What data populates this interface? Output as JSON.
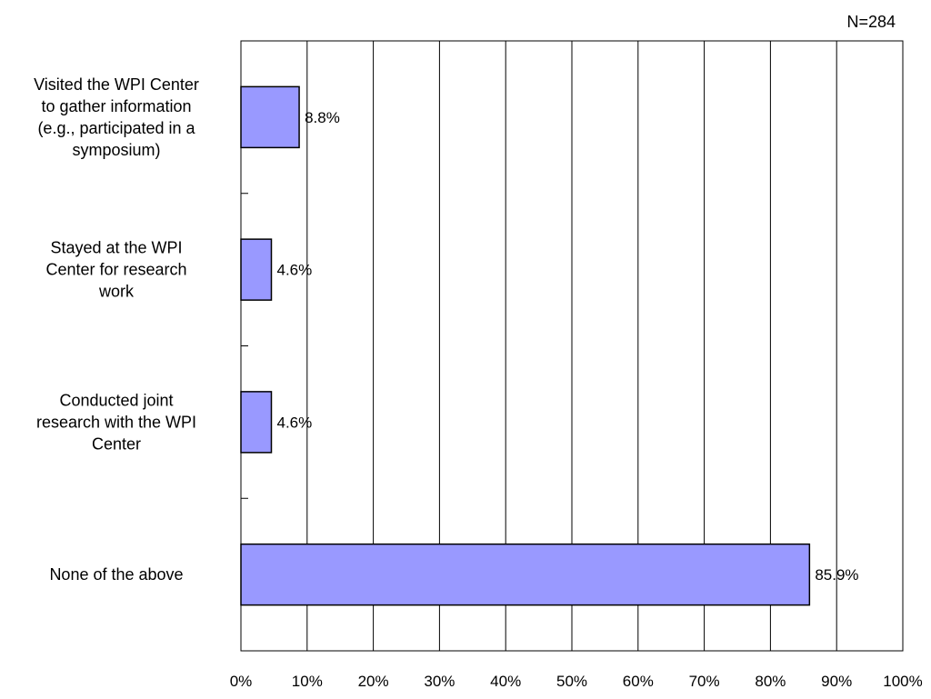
{
  "note": "N=284",
  "chart_data": {
    "type": "bar",
    "orientation": "horizontal",
    "categories": [
      [
        "Visited the WPI Center",
        "to gather information",
        "(e.g., participated in a",
        "symposium)"
      ],
      [
        "Stayed at the WPI",
        "Center for research",
        "work"
      ],
      [
        "Conducted joint",
        "research with the WPI",
        "Center"
      ],
      [
        "None of the above"
      ]
    ],
    "values": [
      8.8,
      4.6,
      4.6,
      85.9
    ],
    "data_labels": [
      "8.8%",
      "4.6%",
      "4.6%",
      "85.9%"
    ],
    "xlim": [
      0,
      100
    ],
    "x_ticks": [
      "0%",
      "10%",
      "20%",
      "30%",
      "40%",
      "50%",
      "60%",
      "70%",
      "80%",
      "90%",
      "100%"
    ],
    "x_grid": true,
    "legend": "none",
    "colors": {
      "bar_fill": "#9999ff",
      "bar_stroke": "#000000",
      "grid": "#000000"
    }
  }
}
